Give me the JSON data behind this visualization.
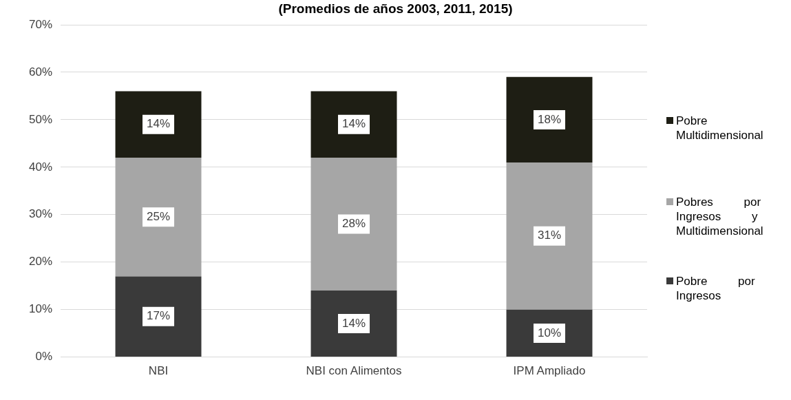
{
  "chart_data": {
    "type": "bar",
    "title": "(Promedios de años 2003, 2011, 2015)",
    "categories": [
      "NBI",
      "NBI con Alimentos",
      "IPM Ampliado"
    ],
    "stacked": true,
    "series": [
      {
        "name": "Pobre por Ingresos",
        "color": "#3a3a3a",
        "values": [
          17,
          14,
          10
        ],
        "value_labels": [
          "17%",
          "14%",
          "10%"
        ]
      },
      {
        "name": "Pobres por Ingresos y Multidimensional",
        "color": "#a6a6a6",
        "values": [
          25,
          28,
          31
        ],
        "value_labels": [
          "25%",
          "28%",
          "31%"
        ]
      },
      {
        "name": "Pobre Multidimensional",
        "color": "#1e1e14",
        "values": [
          14,
          14,
          18
        ],
        "value_labels": [
          "14%",
          "14%",
          "18%"
        ]
      }
    ],
    "ylim": [
      0,
      70
    ],
    "yticks": [
      {
        "value": 0,
        "label": "0%"
      },
      {
        "value": 10,
        "label": "10%"
      },
      {
        "value": 20,
        "label": "20%"
      },
      {
        "value": 30,
        "label": "30%"
      },
      {
        "value": 40,
        "label": "40%"
      },
      {
        "value": 50,
        "label": "50%"
      },
      {
        "value": 60,
        "label": "60%"
      },
      {
        "value": 70,
        "label": "70%"
      }
    ],
    "grid": "y",
    "legend": "right"
  }
}
